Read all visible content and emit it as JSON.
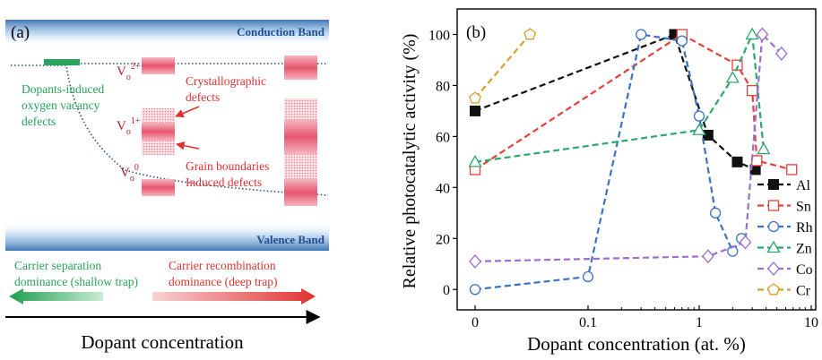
{
  "left_panel": {
    "label": "(a)",
    "conduction_band": "Conduction Band",
    "valence_band": "Valence Band",
    "oxygen_vacancy_label": [
      "Dopants-induced",
      "oxygen vacancy",
      "defects"
    ],
    "crystallographic_label": [
      "Crystallographic",
      "defects"
    ],
    "grain_boundary_label": [
      "Grain boundaries",
      "Induced defects"
    ],
    "vacancy_levels": [
      {
        "base": "V",
        "sub": "o",
        "sup": "2+"
      },
      {
        "base": "V",
        "sub": "o",
        "sup": "1+"
      },
      {
        "base": "V",
        "sub": "o",
        "sup": "0"
      }
    ],
    "carrier_separation": [
      "Carrier separation",
      "dominance (shallow trap)"
    ],
    "carrier_recombination": [
      "Carrier recombination",
      "dominance (deep trap)"
    ],
    "x_axis_label": "Dopant concentration",
    "colors": {
      "green": "#27a35a",
      "red": "#e0312f",
      "band_blue": "#1f5fa8",
      "defect_pink": "#ec6a7f",
      "dotted_line": "#2c4e8a"
    }
  },
  "chart_data": {
    "type": "line",
    "label": "(b)",
    "xlabel": "Dopant concentration (at. %)",
    "ylabel": "Relative photocatalytic activity (%)",
    "x_scale": "log with 0 break",
    "x_ticks": [
      "0",
      "0.1",
      "1",
      "10"
    ],
    "y_ticks": [
      "0",
      "20",
      "40",
      "60",
      "80",
      "100"
    ],
    "ylim": [
      -8,
      110
    ],
    "legend_position": "right",
    "series": [
      {
        "name": "Al",
        "color": "#111111",
        "marker": "square-filled",
        "points": [
          [
            0,
            70
          ],
          [
            0.6,
            100
          ],
          [
            1.2,
            60.5
          ],
          [
            2.2,
            50
          ],
          [
            3.2,
            47
          ]
        ]
      },
      {
        "name": "Sn",
        "color": "#e8403a",
        "marker": "square",
        "points": [
          [
            0,
            47
          ],
          [
            0.7,
            100
          ],
          [
            2.2,
            88
          ],
          [
            3.0,
            78
          ],
          [
            3.3,
            50.5
          ],
          [
            6.8,
            47
          ]
        ]
      },
      {
        "name": "Rh",
        "color": "#3a73c6",
        "marker": "circle",
        "points": [
          [
            0,
            0
          ],
          [
            0.1,
            5
          ],
          [
            0.3,
            100
          ],
          [
            0.7,
            97.5
          ],
          [
            1.0,
            68
          ],
          [
            1.4,
            30
          ],
          [
            2.0,
            15
          ],
          [
            2.4,
            20
          ]
        ]
      },
      {
        "name": "Zn",
        "color": "#2ca86a",
        "marker": "triangle",
        "points": [
          [
            0,
            50
          ],
          [
            1.0,
            62.5
          ],
          [
            2.0,
            83
          ],
          [
            3.0,
            100
          ],
          [
            3.8,
            55
          ]
        ]
      },
      {
        "name": "Co",
        "color": "#9b6fd1",
        "marker": "diamond",
        "points": [
          [
            0,
            11
          ],
          [
            1.2,
            13
          ],
          [
            2.6,
            18.5
          ],
          [
            3.7,
            100
          ],
          [
            5.5,
            92.5
          ]
        ]
      },
      {
        "name": "Cr",
        "color": "#d9a02b",
        "marker": "pentagon",
        "points": [
          [
            0,
            75
          ],
          [
            0.03,
            100
          ]
        ]
      }
    ]
  }
}
